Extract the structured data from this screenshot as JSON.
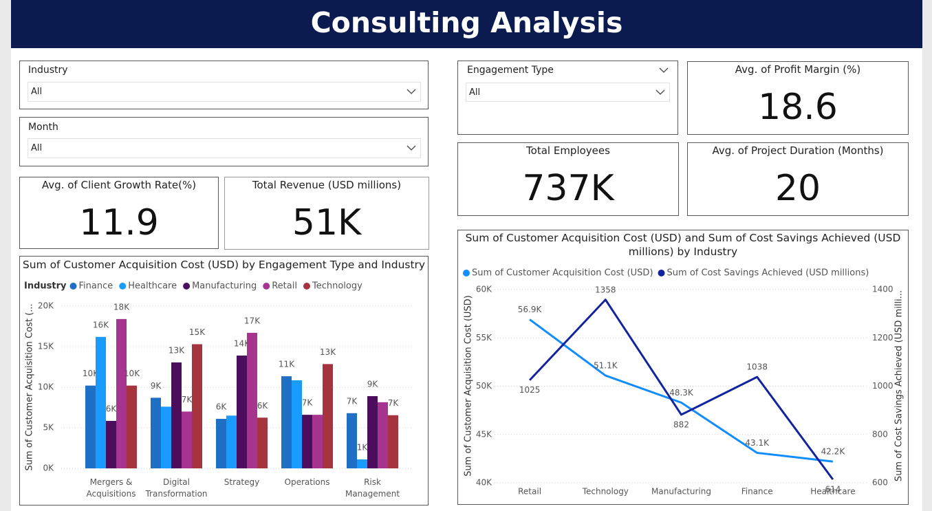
{
  "header": {
    "title": "Consulting Analysis"
  },
  "filters": [
    {
      "label": "Industry",
      "value": "All"
    },
    {
      "label": "Month",
      "value": "All"
    },
    {
      "label": "Engagement Type",
      "value": "All"
    }
  ],
  "cards": [
    {
      "title": "Avg. of Profit Margin (%)",
      "value": 18.6
    },
    {
      "title": "Total Employees",
      "value": "737K"
    },
    {
      "title": "Avg. of Project Duration (Months)",
      "value": 20
    },
    {
      "title": "Avg. of Client Growth Rate(%)",
      "value": 11.9
    },
    {
      "title": "Total Revenue (USD millions)",
      "value": "51K"
    }
  ],
  "chart_data": [
    {
      "type": "bar",
      "title": "Sum of Customer Acquisition Cost (USD) by Engagement Type and Industry",
      "legend_title": "Industry",
      "y_label": "Sum of Customer Acquisition Cost (...",
      "categories": [
        "Mergers & Acquisitions",
        "Digital Transformation",
        "Strategy",
        "Operations",
        "Risk Management"
      ],
      "ylim": [
        0,
        20000
      ],
      "yticks": [
        {
          "value": 0,
          "label": "0K"
        },
        {
          "value": 5000,
          "label": "5K"
        },
        {
          "value": 10000,
          "label": "10K"
        },
        {
          "value": 15000,
          "label": "15K"
        },
        {
          "value": 20000,
          "label": "20K"
        }
      ],
      "grid": true,
      "series": [
        {
          "name": "Finance",
          "color": "#1f6fc5",
          "values": [
            10200,
            8700,
            6100,
            11350,
            6800
          ],
          "value_labels": [
            "10K",
            "9K",
            "6K",
            "11K",
            "7K"
          ]
        },
        {
          "name": "Healthcare",
          "color": "#1a9bff",
          "values": [
            16200,
            7600,
            6500,
            10850,
            1100
          ],
          "value_labels": [
            "16K",
            null,
            null,
            null,
            "1K"
          ]
        },
        {
          "name": "Manufacturing",
          "color": "#4b0d5c",
          "values": [
            5850,
            13050,
            13900,
            6600,
            8900
          ],
          "value_labels": [
            "6K",
            "13K",
            "14K",
            "7K",
            "9K"
          ]
        },
        {
          "name": "Retail",
          "color": "#a7358f",
          "values": [
            18400,
            7000,
            16700,
            6600,
            8150
          ],
          "value_labels": [
            "18K",
            "7K",
            "17K",
            null,
            null
          ]
        },
        {
          "name": "Technology",
          "color": "#a6343f",
          "values": [
            10200,
            15300,
            6250,
            12850,
            6550
          ],
          "value_labels": [
            "10K",
            "15K",
            "6K",
            "13K",
            "7K"
          ]
        }
      ]
    },
    {
      "type": "line",
      "title": "Sum of Customer Acquisition Cost (USD) and Sum of Cost Savings Achieved (USD millions) by Industry",
      "y_label": "Sum of Customer Acquisition Cost (USD)",
      "y2_label": "Sum of Cost Savings Achieved (USD milli...",
      "categories": [
        "Retail",
        "Technology",
        "Manufacturing",
        "Finance",
        "Healthcare"
      ],
      "ylim": [
        40000,
        60000
      ],
      "yticks": [
        {
          "value": 40000,
          "label": "40K"
        },
        {
          "value": 45000,
          "label": "45K"
        },
        {
          "value": 50000,
          "label": "50K"
        },
        {
          "value": 55000,
          "label": "55K"
        },
        {
          "value": 60000,
          "label": "60K"
        }
      ],
      "y2lim": [
        600,
        1400
      ],
      "y2ticks": [
        600,
        800,
        1000,
        1200,
        1400
      ],
      "grid": true,
      "series": [
        {
          "name": "Sum of Customer Acquisition Cost (USD)",
          "color": "#118dff",
          "values": [
            56900,
            51100,
            48300,
            43100,
            42200
          ],
          "value_labels": [
            "56.9K",
            "51.1K",
            "48.3K",
            "43.1K",
            "42.2K"
          ]
        },
        {
          "name": "Sum of Cost Savings Achieved (USD millions)",
          "color": "#12239e",
          "axis": "y2",
          "values": [
            1025,
            1358,
            882,
            1038,
            614
          ]
        }
      ]
    }
  ]
}
